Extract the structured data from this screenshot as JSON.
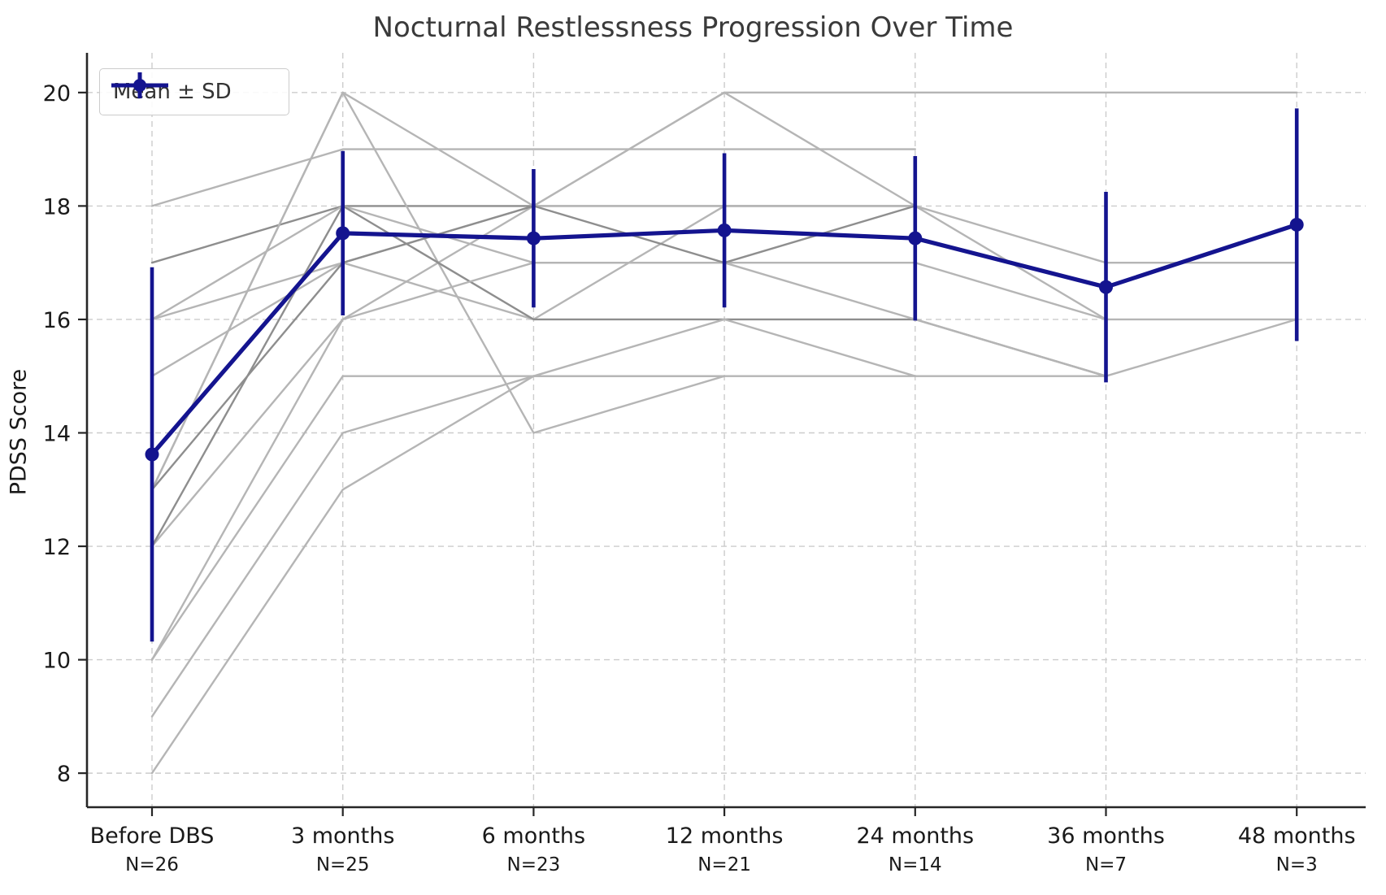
{
  "chart_data": {
    "type": "line",
    "title": "Nocturnal Restlessness Progression Over Time",
    "xlabel": "",
    "ylabel": "PDSS Score",
    "categories": [
      "Before DBS",
      "3 months",
      "6 months",
      "12 months",
      "24 months",
      "36 months",
      "48 months"
    ],
    "n_labels": [
      "N=26",
      "N=25",
      "N=23",
      "N=21",
      "N=14",
      "N=7",
      "N=3"
    ],
    "y_ticks": [
      8,
      10,
      12,
      14,
      16,
      18,
      20
    ],
    "ylim": [
      7.4,
      20.7
    ],
    "grid": true,
    "legend": {
      "label": "Mean ± SD",
      "position": "upper left"
    },
    "mean_series": {
      "name": "Mean ± SD",
      "values": [
        13.62,
        17.52,
        17.43,
        17.57,
        17.43,
        16.57,
        17.67
      ],
      "sd": [
        3.3,
        1.45,
        1.22,
        1.36,
        1.45,
        1.68,
        2.05
      ]
    },
    "individual_series": [
      {
        "shade": "light",
        "values": [
          18,
          19,
          19,
          19,
          19,
          null,
          null
        ]
      },
      {
        "shade": "dark",
        "values": [
          17,
          18,
          18,
          18,
          18,
          null,
          null
        ]
      },
      {
        "shade": "light",
        "values": [
          13,
          20,
          18,
          18,
          18,
          null,
          null
        ]
      },
      {
        "shade": "light",
        "values": [
          12,
          16,
          18,
          20,
          20,
          20,
          20
        ]
      },
      {
        "shade": "light",
        "values": [
          16,
          17,
          18,
          20,
          18,
          17,
          17
        ]
      },
      {
        "shade": "light",
        "values": [
          16,
          18,
          17,
          17,
          17,
          16,
          16
        ]
      },
      {
        "shade": "light",
        "values": [
          15,
          17,
          16,
          18,
          18,
          16,
          null
        ]
      },
      {
        "shade": "light",
        "values": [
          13,
          20,
          14,
          15,
          15,
          15,
          16
        ]
      },
      {
        "shade": "dark",
        "values": [
          12,
          18,
          16,
          16,
          16,
          15,
          null
        ]
      },
      {
        "shade": "light",
        "values": [
          10,
          15,
          15,
          15,
          null,
          null,
          null
        ]
      },
      {
        "shade": "light",
        "values": [
          9,
          14,
          15,
          16,
          15,
          null,
          null
        ]
      },
      {
        "shade": "light",
        "values": [
          8,
          13,
          15,
          15,
          null,
          null,
          null
        ]
      },
      {
        "shade": "light",
        "values": [
          10,
          16,
          17,
          17,
          16,
          15,
          null
        ]
      },
      {
        "shade": "dark",
        "values": [
          13,
          17,
          18,
          17,
          18,
          null,
          null
        ]
      }
    ],
    "colors": {
      "mean": "#14148f",
      "individual_light": "#b5b5b5",
      "individual_dark": "#8e8e8e",
      "grid": "#cccccc",
      "spine": "#262626",
      "tick_text": "#1a1a1a",
      "title_text": "#3a3a3a"
    }
  }
}
